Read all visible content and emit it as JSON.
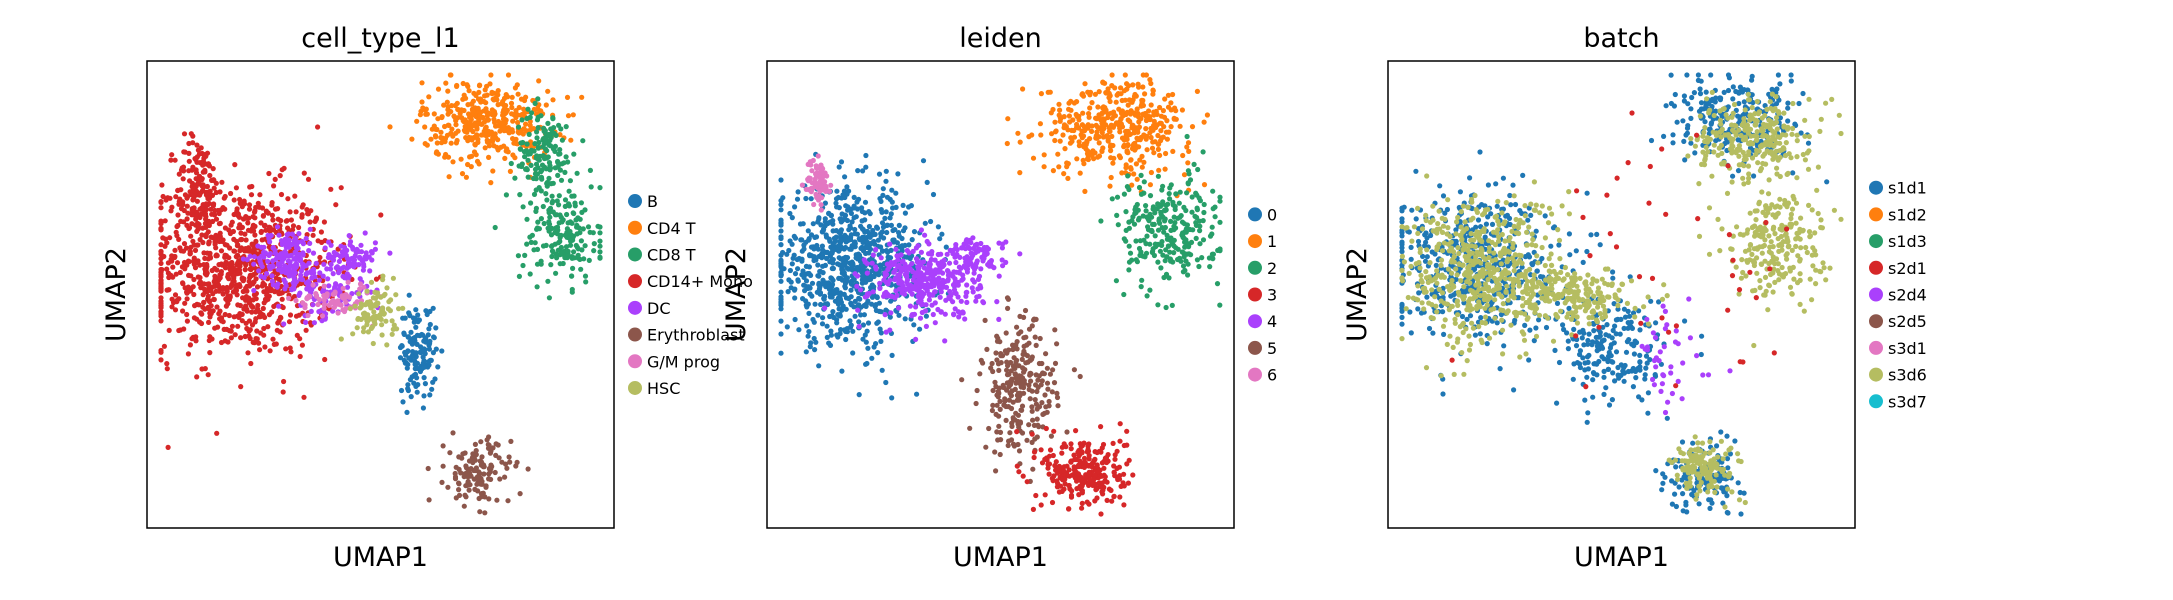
{
  "chart_data": [
    {
      "type": "scatter",
      "title": "cell_type_l1",
      "xlabel": "UMAP1",
      "ylabel": "UMAP2",
      "xticks": "none",
      "yticks": "none",
      "grid": false,
      "legend_position": "right",
      "categories": [
        {
          "name": "B",
          "color": "#1f77b4"
        },
        {
          "name": "CD4 T",
          "color": "#ff7f0e"
        },
        {
          "name": "CD8 T",
          "color": "#279e68"
        },
        {
          "name": "CD14+ Mono",
          "color": "#d62728"
        },
        {
          "name": "DC",
          "color": "#aa40fc"
        },
        {
          "name": "Erythroblast",
          "color": "#8c564b"
        },
        {
          "name": "G/M prog",
          "color": "#e377c2"
        },
        {
          "name": "HSC",
          "color": "#b5bd61"
        }
      ],
      "clusters": [
        {
          "cat": "CD14+ Mono",
          "x": 0.2,
          "y": 0.55,
          "sx": 0.1,
          "sy": 0.09,
          "n": 900
        },
        {
          "cat": "CD14+ Mono",
          "x": 0.11,
          "y": 0.72,
          "sx": 0.025,
          "sy": 0.06,
          "n": 160
        },
        {
          "cat": "DC",
          "x": 0.3,
          "y": 0.58,
          "sx": 0.035,
          "sy": 0.03,
          "n": 160
        },
        {
          "cat": "DC",
          "x": 0.44,
          "y": 0.58,
          "sx": 0.025,
          "sy": 0.02,
          "n": 80
        },
        {
          "cat": "DC",
          "x": 0.38,
          "y": 0.51,
          "sx": 0.05,
          "sy": 0.03,
          "n": 110
        },
        {
          "cat": "G/M prog",
          "x": 0.4,
          "y": 0.49,
          "sx": 0.04,
          "sy": 0.02,
          "n": 70
        },
        {
          "cat": "HSC",
          "x": 0.49,
          "y": 0.46,
          "sx": 0.025,
          "sy": 0.03,
          "n": 90
        },
        {
          "cat": "B",
          "x": 0.58,
          "y": 0.38,
          "sx": 0.02,
          "sy": 0.05,
          "n": 130
        },
        {
          "cat": "CD4 T",
          "x": 0.73,
          "y": 0.87,
          "sx": 0.07,
          "sy": 0.045,
          "n": 380
        },
        {
          "cat": "CD8 T",
          "x": 0.85,
          "y": 0.8,
          "sx": 0.03,
          "sy": 0.05,
          "n": 150
        },
        {
          "cat": "CD8 T",
          "x": 0.89,
          "y": 0.62,
          "sx": 0.045,
          "sy": 0.05,
          "n": 170
        },
        {
          "cat": "Erythroblast",
          "x": 0.71,
          "y": 0.12,
          "sx": 0.035,
          "sy": 0.035,
          "n": 130
        }
      ]
    },
    {
      "type": "scatter",
      "title": "leiden",
      "xlabel": "UMAP1",
      "ylabel": "UMAP2",
      "xticks": "none",
      "yticks": "none",
      "grid": false,
      "legend_position": "right",
      "categories": [
        {
          "name": "0",
          "color": "#1f77b4"
        },
        {
          "name": "1",
          "color": "#ff7f0e"
        },
        {
          "name": "2",
          "color": "#279e68"
        },
        {
          "name": "3",
          "color": "#d62728"
        },
        {
          "name": "4",
          "color": "#aa40fc"
        },
        {
          "name": "5",
          "color": "#8c564b"
        },
        {
          "name": "6",
          "color": "#e377c2"
        }
      ],
      "clusters": [
        {
          "cat": "0",
          "x": 0.18,
          "y": 0.56,
          "sx": 0.085,
          "sy": 0.08,
          "n": 800
        },
        {
          "cat": "4",
          "x": 0.34,
          "y": 0.53,
          "sx": 0.06,
          "sy": 0.04,
          "n": 350
        },
        {
          "cat": "4",
          "x": 0.45,
          "y": 0.58,
          "sx": 0.03,
          "sy": 0.02,
          "n": 80
        },
        {
          "cat": "5",
          "x": 0.54,
          "y": 0.3,
          "sx": 0.04,
          "sy": 0.07,
          "n": 260
        },
        {
          "cat": "1",
          "x": 0.75,
          "y": 0.86,
          "sx": 0.08,
          "sy": 0.05,
          "n": 420
        },
        {
          "cat": "2",
          "x": 0.86,
          "y": 0.64,
          "sx": 0.055,
          "sy": 0.06,
          "n": 260
        },
        {
          "cat": "3",
          "x": 0.68,
          "y": 0.12,
          "sx": 0.045,
          "sy": 0.04,
          "n": 260
        },
        {
          "cat": "6",
          "x": 0.11,
          "y": 0.74,
          "sx": 0.012,
          "sy": 0.025,
          "n": 70
        }
      ]
    },
    {
      "type": "scatter",
      "title": "batch",
      "xlabel": "UMAP1",
      "ylabel": "UMAP2",
      "xticks": "none",
      "yticks": "none",
      "grid": false,
      "legend_position": "right",
      "categories": [
        {
          "name": "s1d1",
          "color": "#1f77b4"
        },
        {
          "name": "s1d2",
          "color": "#ff7f0e"
        },
        {
          "name": "s1d3",
          "color": "#279e68"
        },
        {
          "name": "s2d1",
          "color": "#d62728"
        },
        {
          "name": "s2d4",
          "color": "#aa40fc"
        },
        {
          "name": "s2d5",
          "color": "#8c564b"
        },
        {
          "name": "s3d1",
          "color": "#e377c2"
        },
        {
          "name": "s3d6",
          "color": "#b5bd61"
        },
        {
          "name": "s3d7",
          "color": "#17becf"
        }
      ],
      "clusters": [
        {
          "cat": "s1d1",
          "x": 0.18,
          "y": 0.57,
          "sx": 0.09,
          "sy": 0.08,
          "n": 500
        },
        {
          "cat": "s3d6",
          "x": 0.2,
          "y": 0.55,
          "sx": 0.08,
          "sy": 0.08,
          "n": 500
        },
        {
          "cat": "s1d1",
          "x": 0.48,
          "y": 0.38,
          "sx": 0.06,
          "sy": 0.06,
          "n": 200
        },
        {
          "cat": "s3d6",
          "x": 0.4,
          "y": 0.5,
          "sx": 0.06,
          "sy": 0.03,
          "n": 200
        },
        {
          "cat": "s1d1",
          "x": 0.75,
          "y": 0.87,
          "sx": 0.07,
          "sy": 0.045,
          "n": 250
        },
        {
          "cat": "s3d6",
          "x": 0.78,
          "y": 0.84,
          "sx": 0.06,
          "sy": 0.04,
          "n": 250
        },
        {
          "cat": "s3d6",
          "x": 0.83,
          "y": 0.62,
          "sx": 0.05,
          "sy": 0.07,
          "n": 250
        },
        {
          "cat": "s1d1",
          "x": 0.68,
          "y": 0.11,
          "sx": 0.04,
          "sy": 0.035,
          "n": 140
        },
        {
          "cat": "s3d6",
          "x": 0.68,
          "y": 0.13,
          "sx": 0.035,
          "sy": 0.03,
          "n": 140
        },
        {
          "cat": "s2d4",
          "x": 0.6,
          "y": 0.35,
          "sx": 0.05,
          "sy": 0.06,
          "n": 40
        },
        {
          "cat": "s2d1",
          "x": 0.6,
          "y": 0.6,
          "sx": 0.15,
          "sy": 0.15,
          "n": 40
        }
      ]
    }
  ]
}
